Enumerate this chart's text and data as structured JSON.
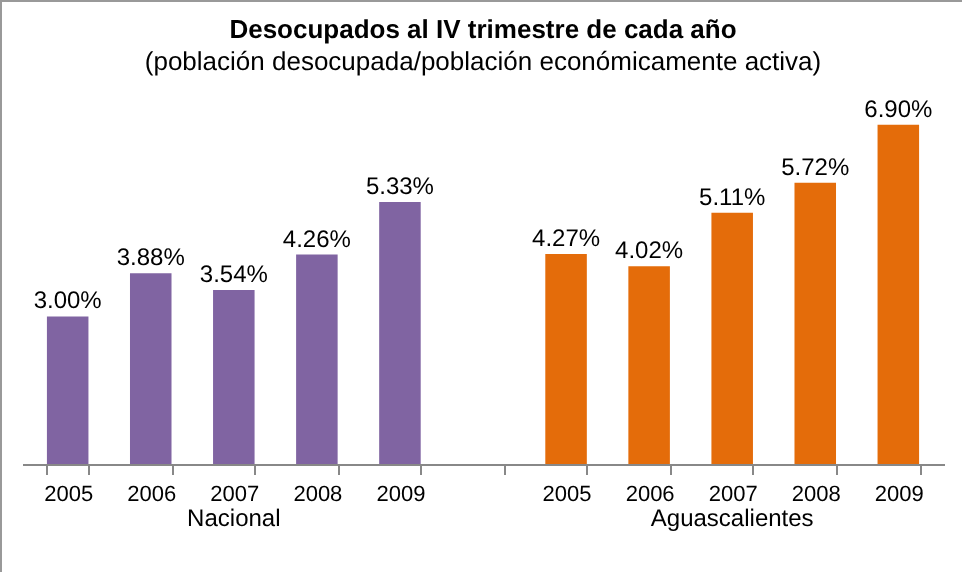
{
  "chart_data": {
    "type": "bar",
    "title": "Desocupados al IV trimestre de cada año",
    "subtitle": "(población desocupada/población económicamente activa)",
    "categories": [
      "2005",
      "2006",
      "2007",
      "2008",
      "2009",
      null,
      "2005",
      "2006",
      "2007",
      "2008",
      "2009"
    ],
    "series": [
      {
        "name": "Nacional",
        "color": "#8064a2",
        "values": [
          3.0,
          3.88,
          3.54,
          4.26,
          5.33,
          null,
          null,
          null,
          null,
          null,
          null
        ],
        "value_labels": [
          "3.00%",
          "3.88%",
          "3.54%",
          "4.26%",
          "5.33%",
          null,
          null,
          null,
          null,
          null,
          null
        ]
      },
      {
        "name": "Aguascalientes",
        "color": "#e46c0a",
        "values": [
          null,
          null,
          null,
          null,
          null,
          null,
          4.27,
          4.02,
          5.11,
          5.72,
          6.9
        ],
        "value_labels": [
          null,
          null,
          null,
          null,
          null,
          null,
          "4.27%",
          "4.02%",
          "5.11%",
          "5.72%",
          "6.90%"
        ]
      }
    ],
    "legend": false,
    "grid": false
  }
}
